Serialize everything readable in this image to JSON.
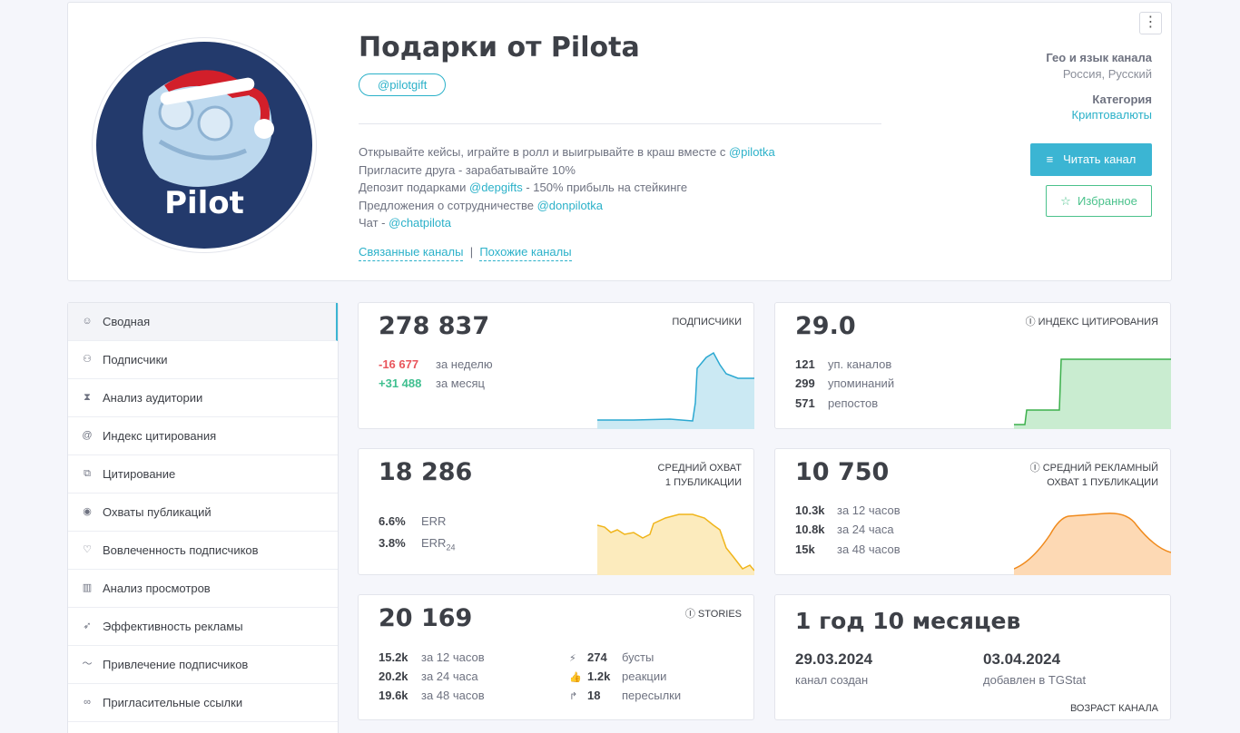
{
  "header": {
    "title": "Подарки от Pilota",
    "handle": "@pilotgift",
    "avatar_text": "Pilot",
    "description": [
      {
        "text": "Открывайте кейсы, играйте в ролл и выигрывайте в краш вместе с ",
        "link": "@pilotka",
        "after": ""
      },
      {
        "text": "Пригласите друга - зарабатывайте 10%",
        "link": "",
        "after": ""
      },
      {
        "text": "Депозит подарками ",
        "link": "@depgifts",
        "after": " - 150% прибыль на стейкинге"
      },
      {
        "text": "Предложения о сотрудничестве ",
        "link": "@donpilotka",
        "after": ""
      },
      {
        "text": "Чат - ",
        "link": "@chatpilota",
        "after": ""
      }
    ],
    "related_label": "Связанные каналы",
    "separator": "|",
    "similar_label": "Похожие каналы",
    "geo_label": "Гео и язык канала",
    "geo_value": "Россия, Русский",
    "category_label": "Категория",
    "category_value": "Криптовалюты",
    "read_button": "Читать канал",
    "favorite_button": "Избранное",
    "menu_icon": "⋮"
  },
  "sidebar": {
    "items": [
      {
        "label": "Сводная",
        "icon": "☺",
        "active": true
      },
      {
        "label": "Подписчики",
        "icon": "⚇"
      },
      {
        "label": "Анализ аудитории",
        "icon": "⧗"
      },
      {
        "label": "Индекс цитирования",
        "icon": "@"
      },
      {
        "label": "Цитирование",
        "icon": "⧉"
      },
      {
        "label": "Охваты публикаций",
        "icon": "◉"
      },
      {
        "label": "Вовлеченность подписчиков",
        "icon": "♡"
      },
      {
        "label": "Анализ просмотров",
        "icon": "▥"
      },
      {
        "label": "Эффективность рекламы",
        "icon": "➶"
      },
      {
        "label": "Привлечение подписчиков",
        "icon": "〜"
      },
      {
        "label": "Пригласительные ссылки",
        "icon": "∞"
      }
    ]
  },
  "stats": {
    "subscribers": {
      "value": "278 837",
      "label": "ПОДПИСЧИКИ",
      "rows": [
        {
          "num": "-16 677",
          "text": "за неделю",
          "color": "#e9555c"
        },
        {
          "num": "+31 488",
          "text": "за месяц",
          "color": "#3fbf8f"
        }
      ]
    },
    "citation": {
      "value": "29.0",
      "label": "ИНДЕКС ЦИТИРОВАНИЯ",
      "rows": [
        {
          "num": "121",
          "text": "уп. каналов"
        },
        {
          "num": "299",
          "text": "упоминаний"
        },
        {
          "num": "571",
          "text": "репостов"
        }
      ]
    },
    "reach": {
      "value": "18 286",
      "label_line1": "СРЕДНИЙ ОХВАТ",
      "label_line2": "1 ПУБЛИКАЦИИ",
      "rows": [
        {
          "num": "6.6%",
          "text": "ERR"
        },
        {
          "num": "3.8%",
          "text": "ERR",
          "sub": "24"
        }
      ]
    },
    "ad_reach": {
      "value": "10 750",
      "label_line1": "СРЕДНИЙ РЕКЛАМНЫЙ",
      "label_line2": "ОХВАТ 1 ПУБЛИКАЦИИ",
      "rows": [
        {
          "num": "10.3k",
          "text": "за 12 часов"
        },
        {
          "num": "10.8k",
          "text": "за 24 часа"
        },
        {
          "num": "15k",
          "text": "за 48 часов"
        }
      ]
    },
    "stories": {
      "value": "20 169",
      "label": "STORIES",
      "rows": [
        {
          "num": "15.2k",
          "text": "за 12 часов"
        },
        {
          "num": "20.2k",
          "text": "за 24 часа"
        },
        {
          "num": "19.6k",
          "text": "за 48 часов"
        }
      ],
      "extra": [
        {
          "icon": "⚡",
          "num": "274",
          "text": "бусты"
        },
        {
          "icon": "👍",
          "num": "1.2k",
          "text": "реакции"
        },
        {
          "icon": "↱",
          "num": "18",
          "text": "пересылки"
        }
      ]
    },
    "age": {
      "value": "1 год 10 месяцев",
      "created_date": "29.03.2024",
      "created_label": "канал создан",
      "added_date": "03.04.2024",
      "added_label": "добавлен в TGStat",
      "label": "ВОЗРАСТ КАНАЛА"
    }
  },
  "colors": {
    "accent": "#3bb5d3",
    "green": "#4bc28c",
    "spark_blue": "#2ba8d1",
    "spark_green": "#3cb04c",
    "spark_yellow": "#f0b51b",
    "spark_orange": "#f08a1c"
  }
}
